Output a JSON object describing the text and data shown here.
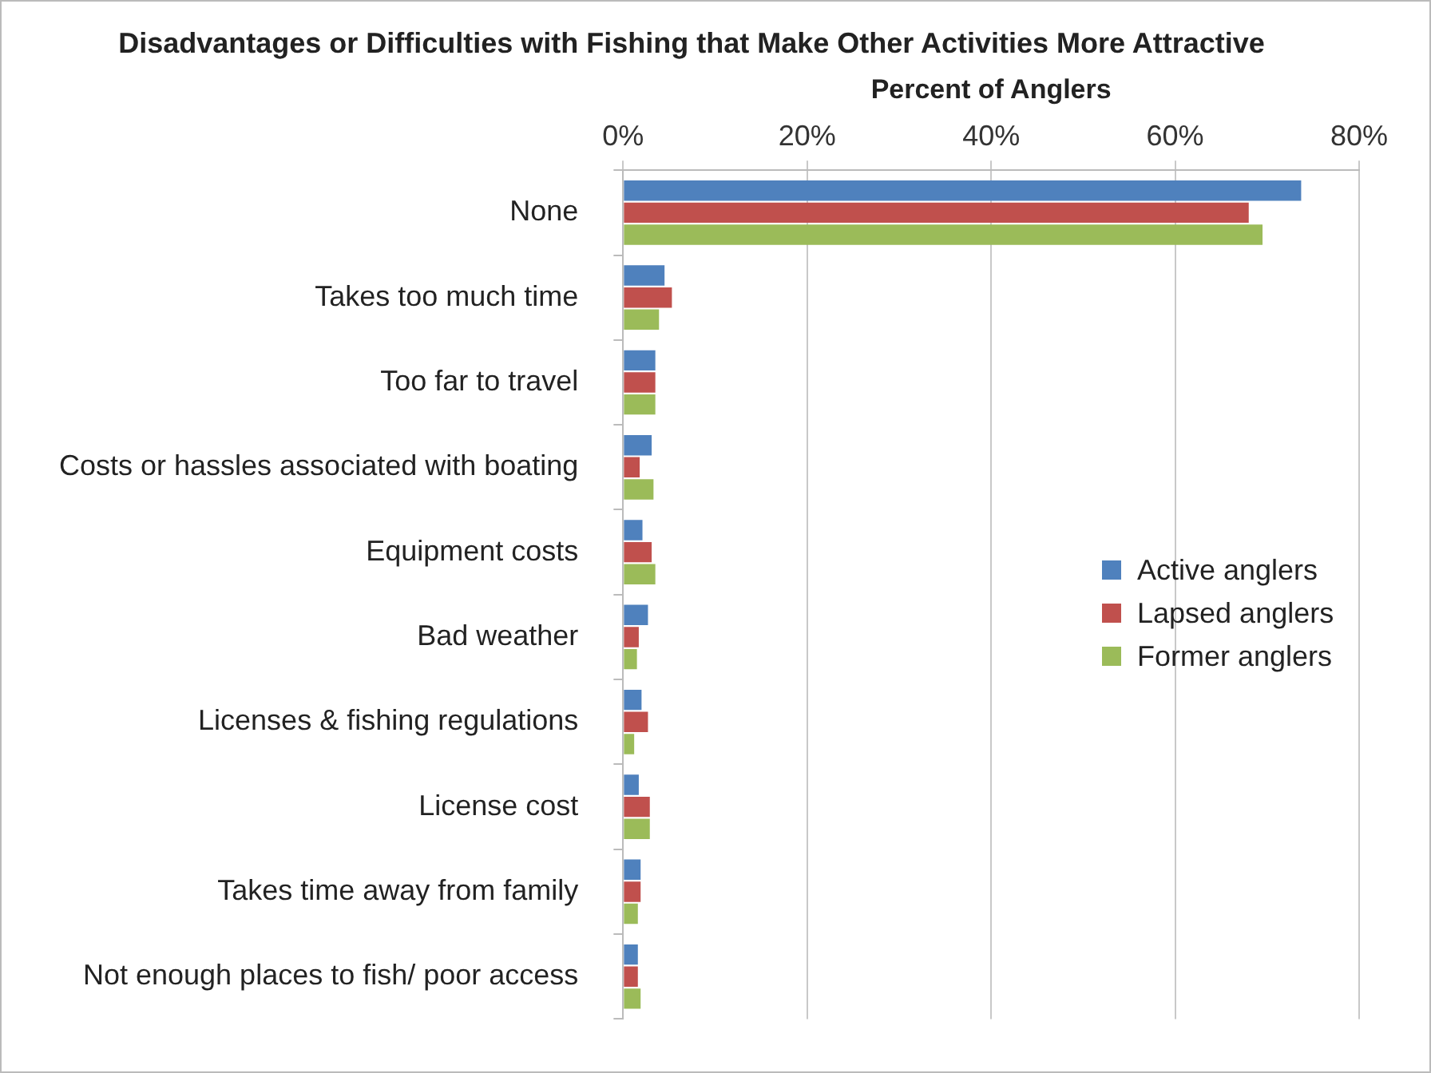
{
  "chart_data": {
    "type": "bar",
    "orientation": "horizontal",
    "title": "Disadvantages or Difficulties with Fishing that Make Other Activities More Attractive",
    "xlabel": "Percent of Anglers",
    "categories": [
      "None",
      "Takes too much time",
      "Too far to travel",
      "Costs or hassles associated with boating",
      "Equipment costs",
      "Bad weather",
      "Licenses & fishing regulations",
      "License cost",
      "Takes time away from family",
      "Not enough places to fish/ poor access"
    ],
    "series": [
      {
        "name": "Active anglers",
        "color": "#4f81bd",
        "values": [
          73.7,
          4.5,
          3.5,
          3.1,
          2.1,
          2.7,
          2.0,
          1.7,
          1.9,
          1.6
        ]
      },
      {
        "name": "Lapsed anglers",
        "color": "#c0504d",
        "values": [
          68,
          5.3,
          3.5,
          1.8,
          3.1,
          1.7,
          2.7,
          2.9,
          1.9,
          1.6
        ]
      },
      {
        "name": "Former anglers",
        "color": "#9bbb59",
        "values": [
          69.5,
          3.9,
          3.5,
          3.3,
          3.5,
          1.5,
          1.2,
          2.9,
          1.6,
          1.9
        ]
      }
    ],
    "xlim": [
      0,
      80
    ],
    "xticks": [
      {
        "value": 0,
        "label": "0%"
      },
      {
        "value": 20,
        "label": "20%"
      },
      {
        "value": 40,
        "label": "40%"
      },
      {
        "value": 60,
        "label": "60%"
      },
      {
        "value": 80,
        "label": "80%"
      }
    ],
    "grid": "x",
    "legend": "right"
  }
}
